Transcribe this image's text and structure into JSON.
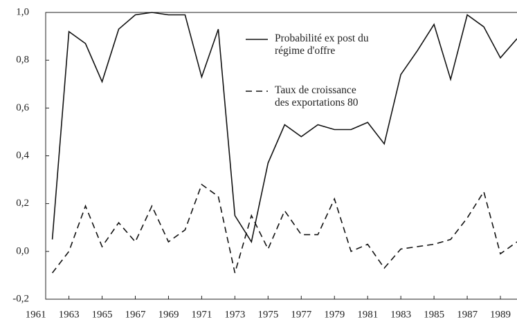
{
  "chart_data": {
    "type": "line",
    "x": [
      1962,
      1963,
      1964,
      1965,
      1966,
      1967,
      1968,
      1969,
      1970,
      1971,
      1972,
      1973,
      1974,
      1975,
      1976,
      1977,
      1978,
      1979,
      1980,
      1981,
      1982,
      1983,
      1984,
      1985,
      1986,
      1987,
      1988,
      1989,
      1990
    ],
    "series": [
      {
        "name": "Probabilité ex post du régime d'offre",
        "color": "#111111",
        "dash": "solid",
        "values": [
          0.05,
          0.92,
          0.87,
          0.71,
          0.93,
          0.99,
          1.0,
          0.99,
          0.99,
          0.73,
          0.93,
          0.15,
          0.04,
          0.37,
          0.53,
          0.48,
          0.53,
          0.51,
          0.51,
          0.54,
          0.45,
          0.74,
          0.84,
          0.95,
          0.72,
          0.99,
          0.94,
          0.81,
          0.89
        ]
      },
      {
        "name": "Taux de croissance des exportations 80",
        "color": "#111111",
        "dash": "dashed",
        "values": [
          -0.09,
          0.0,
          0.19,
          0.02,
          0.12,
          0.04,
          0.19,
          0.04,
          0.09,
          0.28,
          0.23,
          -0.09,
          0.15,
          0.01,
          0.17,
          0.07,
          0.07,
          0.22,
          0.0,
          0.03,
          -0.07,
          0.01,
          0.02,
          0.03,
          0.05,
          0.14,
          0.25,
          -0.01,
          0.04
        ]
      }
    ],
    "xlim": [
      1961.6,
      1990
    ],
    "xticks": [
      1961,
      1963,
      1965,
      1967,
      1969,
      1971,
      1973,
      1975,
      1977,
      1979,
      1981,
      1983,
      1985,
      1987,
      1989
    ],
    "ylim": [
      -0.2,
      1.0
    ],
    "yticks": [
      {
        "value": -0.2,
        "label": "-0,2"
      },
      {
        "value": 0,
        "label": "0,0"
      },
      {
        "value": 0.2,
        "label": "0,2"
      },
      {
        "value": 0.4,
        "label": "0,4"
      },
      {
        "value": 0.6,
        "label": "0,6"
      },
      {
        "value": 0.8,
        "label": "0,8"
      },
      {
        "value": 1.0,
        "label": "1,0"
      }
    ]
  }
}
